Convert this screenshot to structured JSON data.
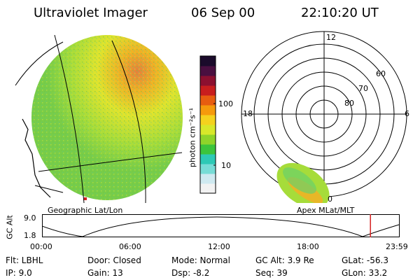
{
  "header": {
    "instrument": "Ultraviolet Imager",
    "date": "06 Sep 00",
    "time": "22:10:20 UT"
  },
  "colorbar": {
    "label": "photon cm⁻²s⁻¹",
    "tick_high": "100",
    "tick_low": "10",
    "colors": [
      "#f2f2f2",
      "#cfe9f0",
      "#78dcd6",
      "#2ec9b5",
      "#3cc43c",
      "#8fd42a",
      "#d8e82a",
      "#f4d21e",
      "#f59a0c",
      "#e75d10",
      "#c81e1e",
      "#8c1030",
      "#4a0f40",
      "#1b0b2b"
    ]
  },
  "left_panel": {
    "caption": "Geographic Lat/Lon"
  },
  "right_panel": {
    "caption": "Apex MLat/MLT",
    "mlt_labels": {
      "top": "12",
      "left": "18",
      "right": "6",
      "bottom": "0"
    },
    "lat_labels": [
      "60",
      "70",
      "80"
    ]
  },
  "altitude_plot": {
    "ylabel": "GC Alt",
    "y_top": "9.0",
    "y_bottom": "1.8",
    "x_ticks": [
      "00:00",
      "06:00",
      "12:00",
      "18:00",
      "23:59"
    ],
    "marker_color": "#d42020",
    "marker_fraction": 0.92
  },
  "footer": {
    "row1": {
      "flt": "Flt: LBHL",
      "door": "Door: Closed",
      "mode": "Mode: Normal",
      "gcalt": "GC Alt: 3.9 Re",
      "glat": "GLat: -56.3"
    },
    "row2": {
      "ip": "IP: 9.0",
      "gain": "Gain: 13",
      "dsp": "Dsp: -8.2",
      "seq": "Seq: 39",
      "glon": "GLon: 33.2"
    }
  }
}
